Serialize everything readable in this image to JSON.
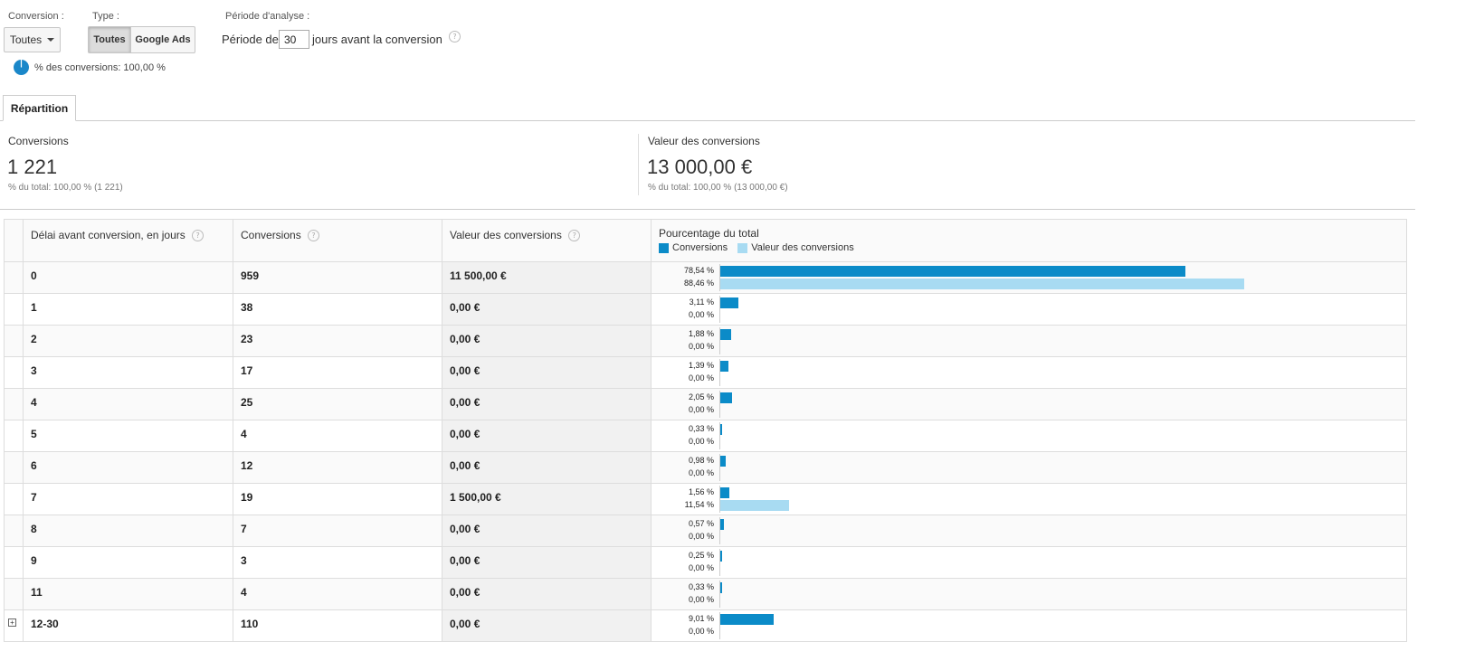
{
  "controls": {
    "conversion_label": "Conversion :",
    "conversion_value": "Toutes",
    "type_label": "Type :",
    "type_buttons": [
      "Toutes",
      "Google Ads"
    ],
    "period_label": "Période d'analyse :",
    "period_prefix": "Période de",
    "period_value": "30",
    "period_suffix": "jours avant la conversion",
    "pct_conversions": "% des conversions: 100,00 %"
  },
  "tabs": [
    "Répartition"
  ],
  "summary": {
    "left": {
      "label": "Conversions",
      "value": "1 221",
      "sub": "% du total: 100,00 % (1 221)"
    },
    "right": {
      "label": "Valeur des conversions",
      "value": "13 000,00 €",
      "sub": "% du total: 100,00 % (13 000,00 €)"
    }
  },
  "table": {
    "headers": [
      "Délai avant conversion, en jours",
      "Conversions",
      "Valeur des conversions",
      "Pourcentage du total"
    ],
    "legend": [
      "Conversions",
      "Valeur des conversions"
    ],
    "rows": [
      {
        "delay": "0",
        "conversions": "959",
        "value": "11 500,00 €",
        "pct_conv": "78,54 %",
        "pct_val": "88,46 %",
        "conv_pct": 78.54,
        "val_pct": 88.46
      },
      {
        "delay": "1",
        "conversions": "38",
        "value": "0,00 €",
        "pct_conv": "3,11 %",
        "pct_val": "0,00 %",
        "conv_pct": 3.11,
        "val_pct": 0
      },
      {
        "delay": "2",
        "conversions": "23",
        "value": "0,00 €",
        "pct_conv": "1,88 %",
        "pct_val": "0,00 %",
        "conv_pct": 1.88,
        "val_pct": 0
      },
      {
        "delay": "3",
        "conversions": "17",
        "value": "0,00 €",
        "pct_conv": "1,39 %",
        "pct_val": "0,00 %",
        "conv_pct": 1.39,
        "val_pct": 0
      },
      {
        "delay": "4",
        "conversions": "25",
        "value": "0,00 €",
        "pct_conv": "2,05 %",
        "pct_val": "0,00 %",
        "conv_pct": 2.05,
        "val_pct": 0
      },
      {
        "delay": "5",
        "conversions": "4",
        "value": "0,00 €",
        "pct_conv": "0,33 %",
        "pct_val": "0,00 %",
        "conv_pct": 0.33,
        "val_pct": 0
      },
      {
        "delay": "6",
        "conversions": "12",
        "value": "0,00 €",
        "pct_conv": "0,98 %",
        "pct_val": "0,00 %",
        "conv_pct": 0.98,
        "val_pct": 0
      },
      {
        "delay": "7",
        "conversions": "19",
        "value": "1 500,00 €",
        "pct_conv": "1,56 %",
        "pct_val": "11,54 %",
        "conv_pct": 1.56,
        "val_pct": 11.54
      },
      {
        "delay": "8",
        "conversions": "7",
        "value": "0,00 €",
        "pct_conv": "0,57 %",
        "pct_val": "0,00 %",
        "conv_pct": 0.57,
        "val_pct": 0
      },
      {
        "delay": "9",
        "conversions": "3",
        "value": "0,00 €",
        "pct_conv": "0,25 %",
        "pct_val": "0,00 %",
        "conv_pct": 0.25,
        "val_pct": 0
      },
      {
        "delay": "11",
        "conversions": "4",
        "value": "0,00 €",
        "pct_conv": "0,33 %",
        "pct_val": "0,00 %",
        "conv_pct": 0.33,
        "val_pct": 0
      },
      {
        "delay": "12-30",
        "conversions": "110",
        "value": "0,00 €",
        "pct_conv": "9,01 %",
        "pct_val": "0,00 %",
        "conv_pct": 9.01,
        "val_pct": 0,
        "expandable": true
      }
    ]
  },
  "icons": {
    "help": "question-circle-icon",
    "pie": "pie-chart-icon",
    "expand": "plus-square-icon",
    "dropdown": "caret-down-icon"
  },
  "colors": {
    "conv_bar": "#0B8BC8",
    "val_bar": "#A8DBF2",
    "pie": "#1A87C9"
  }
}
